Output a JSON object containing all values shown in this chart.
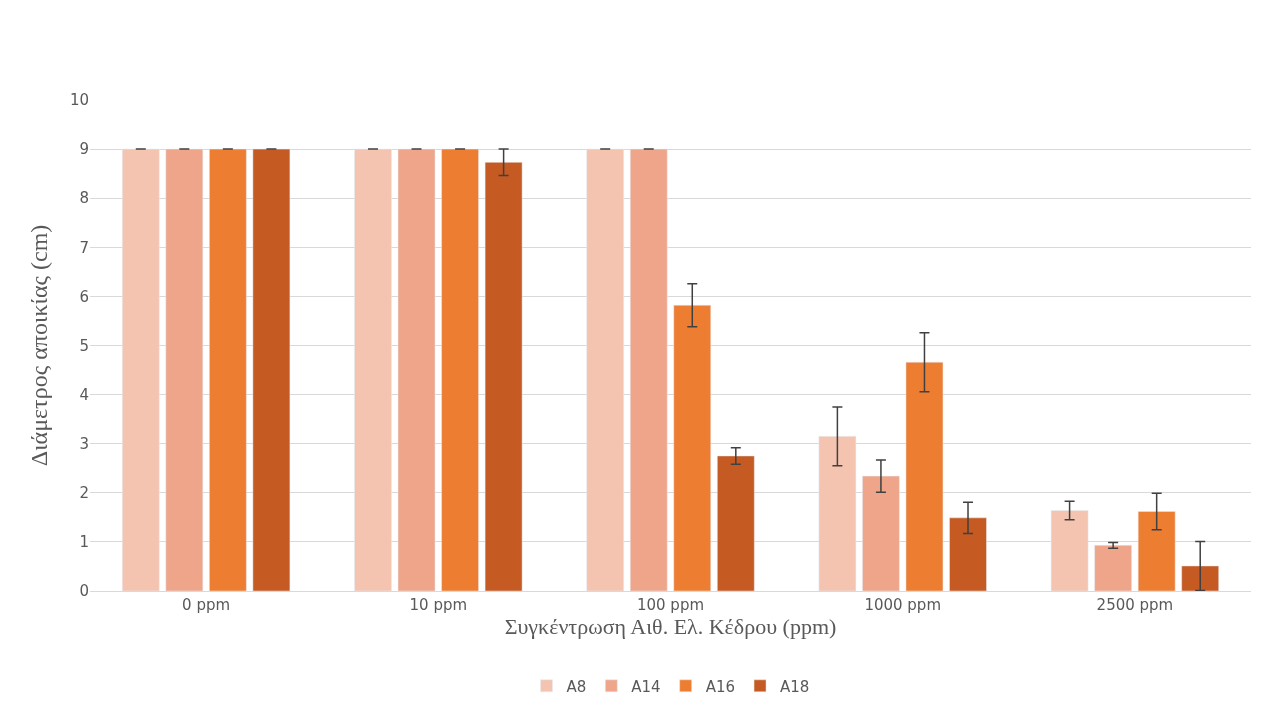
{
  "chart_data": {
    "type": "bar",
    "xlabel": "Συγκέντρωση Αιθ. Ελ. Κέδρου (ppm)",
    "ylabel": "Διάμετρος αποικίας (cm)",
    "categories": [
      "0 ppm",
      "10 ppm",
      "100 ppm",
      "1000 ppm",
      "2500 ppm"
    ],
    "series": [
      {
        "name": "A8",
        "color": "#f4c4b0",
        "values": [
          9,
          9,
          9,
          3.15,
          1.64
        ],
        "errors": [
          0,
          0,
          0,
          0.6,
          0.19
        ]
      },
      {
        "name": "A14",
        "color": "#eea58a",
        "values": [
          9,
          9,
          9,
          2.34,
          0.93
        ],
        "errors": [
          0,
          0,
          0,
          0.33,
          0.06
        ]
      },
      {
        "name": "A16",
        "color": "#ed7d31",
        "values": [
          9,
          9,
          5.82,
          4.66,
          1.62
        ],
        "errors": [
          0,
          0,
          0.44,
          0.6,
          0.37
        ]
      },
      {
        "name": "A18",
        "color": "#c55a23",
        "values": [
          9,
          8.73,
          2.75,
          1.49,
          0.51
        ],
        "errors": [
          0,
          0.27,
          0.17,
          0.32,
          0.5
        ]
      }
    ],
    "ylim": [
      0,
      10
    ],
    "yticks": [
      0,
      1,
      2,
      3,
      4,
      5,
      6,
      7,
      8,
      9,
      10
    ],
    "grid": "y",
    "legend": "bottom"
  }
}
